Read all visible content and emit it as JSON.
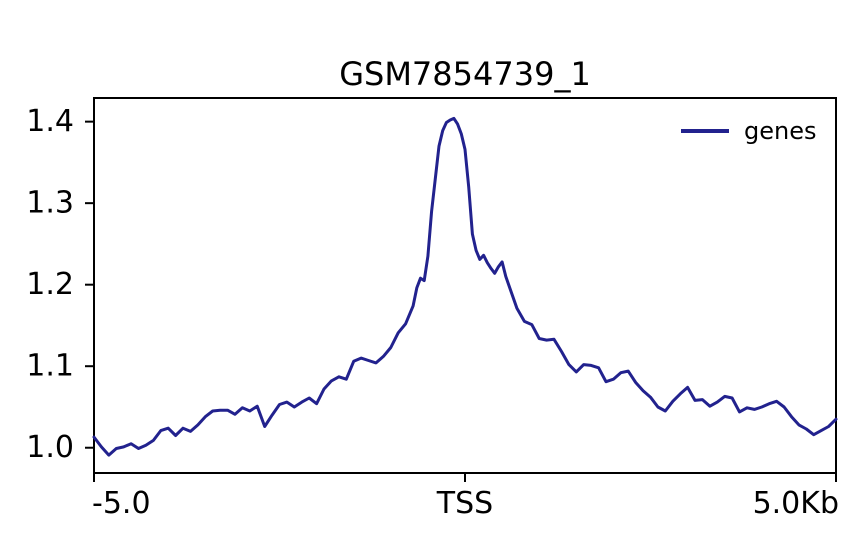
{
  "chart_data": {
    "type": "line",
    "title": "GSM7854739_1",
    "xlabel": "",
    "ylabel": "",
    "xlim": [
      -5.0,
      5.0
    ],
    "ylim": [
      0.969,
      1.429
    ],
    "grid": false,
    "background_color": "#ffffff",
    "axis_color": "#000000",
    "xticks": [
      {
        "value": -5.0,
        "label": "-5.0"
      },
      {
        "value": 0.0,
        "label": "TSS"
      },
      {
        "value": 5.0,
        "label": "5.0Kb"
      }
    ],
    "yticks": [
      {
        "value": 1.0,
        "label": "1.0"
      },
      {
        "value": 1.1,
        "label": "1.1"
      },
      {
        "value": 1.2,
        "label": "1.2"
      },
      {
        "value": 1.3,
        "label": "1.3"
      },
      {
        "value": 1.4,
        "label": "1.4"
      }
    ],
    "legend": {
      "position": "upper right",
      "frame": false
    },
    "x_units": "Kb",
    "reference_point": "TSS",
    "series": [
      {
        "name": "genes",
        "color": "#22228e",
        "x": [
          -5.0,
          -4.9,
          -4.8,
          -4.7,
          -4.6,
          -4.5,
          -4.4,
          -4.3,
          -4.2,
          -4.1,
          -4.0,
          -3.9,
          -3.8,
          -3.7,
          -3.6,
          -3.5,
          -3.4,
          -3.3,
          -3.2,
          -3.1,
          -3.0,
          -2.9,
          -2.8,
          -2.7,
          -2.6,
          -2.5,
          -2.4,
          -2.3,
          -2.2,
          -2.1,
          -2.0,
          -1.9,
          -1.8,
          -1.7,
          -1.6,
          -1.5,
          -1.4,
          -1.3,
          -1.2,
          -1.1,
          -1.0,
          -0.9,
          -0.8,
          -0.7,
          -0.65,
          -0.6,
          -0.55,
          -0.5,
          -0.45,
          -0.4,
          -0.35,
          -0.3,
          -0.25,
          -0.2,
          -0.15,
          -0.1,
          -0.05,
          0.0,
          0.05,
          0.1,
          0.15,
          0.2,
          0.25,
          0.3,
          0.35,
          0.4,
          0.45,
          0.5,
          0.55,
          0.6,
          0.7,
          0.8,
          0.9,
          1.0,
          1.1,
          1.2,
          1.3,
          1.4,
          1.5,
          1.6,
          1.7,
          1.8,
          1.9,
          2.0,
          2.1,
          2.2,
          2.3,
          2.4,
          2.5,
          2.6,
          2.7,
          2.8,
          2.9,
          3.0,
          3.1,
          3.2,
          3.3,
          3.4,
          3.5,
          3.6,
          3.7,
          3.8,
          3.9,
          4.0,
          4.1,
          4.2,
          4.3,
          4.4,
          4.5,
          4.6,
          4.7,
          4.8,
          4.9,
          5.0
        ],
        "values": [
          1.013,
          1.001,
          0.991,
          0.999,
          1.001,
          1.005,
          0.999,
          1.003,
          1.009,
          1.021,
          1.024,
          1.015,
          1.024,
          1.02,
          1.028,
          1.038,
          1.045,
          1.046,
          1.046,
          1.041,
          1.049,
          1.045,
          1.051,
          1.026,
          1.04,
          1.053,
          1.056,
          1.05,
          1.056,
          1.061,
          1.054,
          1.072,
          1.082,
          1.087,
          1.084,
          1.106,
          1.11,
          1.107,
          1.104,
          1.112,
          1.123,
          1.141,
          1.152,
          1.174,
          1.196,
          1.208,
          1.205,
          1.235,
          1.29,
          1.33,
          1.37,
          1.389,
          1.399,
          1.402,
          1.404,
          1.397,
          1.385,
          1.366,
          1.32,
          1.262,
          1.242,
          1.231,
          1.236,
          1.227,
          1.22,
          1.214,
          1.222,
          1.228,
          1.21,
          1.197,
          1.171,
          1.155,
          1.151,
          1.134,
          1.132,
          1.133,
          1.118,
          1.102,
          1.093,
          1.102,
          1.101,
          1.098,
          1.081,
          1.084,
          1.092,
          1.094,
          1.08,
          1.07,
          1.062,
          1.05,
          1.045,
          1.057,
          1.066,
          1.074,
          1.058,
          1.059,
          1.051,
          1.056,
          1.063,
          1.061,
          1.044,
          1.049,
          1.047,
          1.05,
          1.054,
          1.057,
          1.05,
          1.038,
          1.028,
          1.023,
          1.016,
          1.021,
          1.026,
          1.035
        ]
      }
    ]
  }
}
